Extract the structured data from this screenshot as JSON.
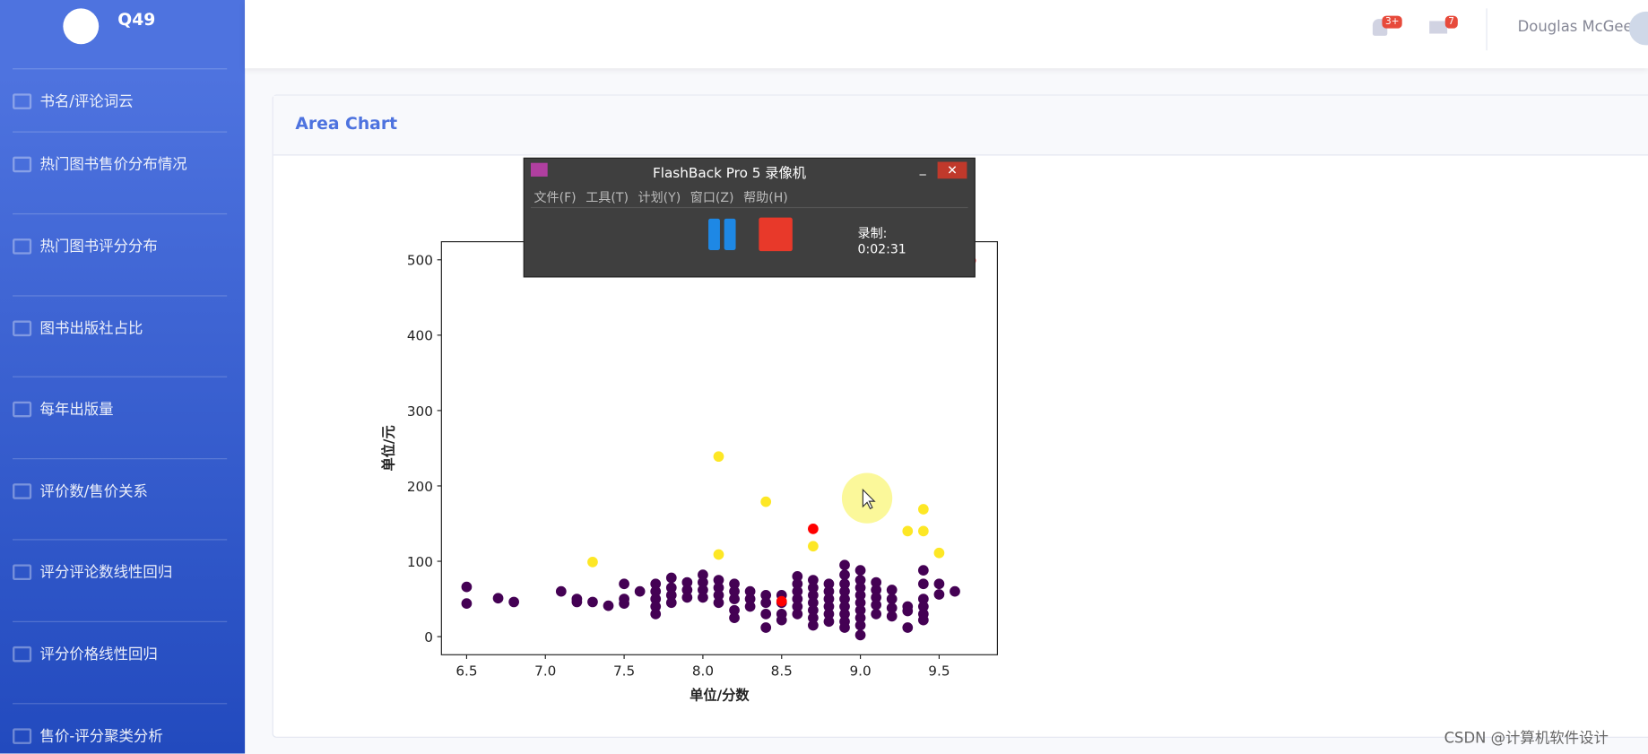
{
  "sidebar": {
    "brand": "Q49",
    "items": [
      "书名/评论词云",
      "热门图书售价分布情况",
      "热门图书评分分布",
      "图书出版社占比",
      "每年出版量",
      "评价数/售价关系",
      "评分评论数线性回归",
      "评分价格线性回归",
      "售价-评分聚类分析"
    ]
  },
  "topbar": {
    "alerts_badge": "3+",
    "messages_badge": "7",
    "user": "Douglas McGee"
  },
  "card": {
    "title": "Area Chart"
  },
  "recorder": {
    "title": "FlashBack Pro 5 录像机",
    "menu": [
      "文件(F)",
      "工具(T)",
      "计划(Y)",
      "窗口(Z)",
      "帮助(H)"
    ],
    "status_label": "录制:",
    "time": "0:02:31"
  },
  "watermark": "CSDN @计算机软件设计",
  "chart_data": {
    "type": "scatter",
    "xlabel": "单位/分数",
    "ylabel": "单位/元",
    "xlim": [
      6.34,
      9.87
    ],
    "ylim": [
      -24,
      524
    ],
    "xticks": [
      6.5,
      {
        "value": 7,
        "label": "7.0"
      },
      7.5,
      {
        "value": 8,
        "label": "8.0"
      },
      8.5,
      {
        "value": 9,
        "label": "9.0"
      },
      9.5
    ],
    "yticks": [
      0,
      100,
      200,
      300,
      400,
      500
    ],
    "series": [
      {
        "color": "#440154",
        "x": [
          6.5,
          6.5,
          6.7,
          6.8,
          7.1,
          7.2,
          7.2,
          7.3,
          7.4,
          7.5,
          7.5,
          7.5,
          7.6,
          7.7,
          7.7,
          7.7,
          7.7,
          7.7,
          7.8,
          7.8,
          7.8,
          7.8,
          7.9,
          7.9,
          7.9,
          8.0,
          8.0,
          8.0,
          8.0,
          8.1,
          8.1,
          8.1,
          8.1,
          8.2,
          8.2,
          8.2,
          8.2,
          8.2,
          8.3,
          8.3,
          8.3,
          8.4,
          8.4,
          8.4,
          8.4,
          8.5,
          8.5,
          8.5,
          8.5,
          8.6,
          8.6,
          8.6,
          8.6,
          8.6,
          8.6,
          8.7,
          8.7,
          8.7,
          8.7,
          8.7,
          8.7,
          8.7,
          8.8,
          8.8,
          8.8,
          8.8,
          8.8,
          8.8,
          8.9,
          8.9,
          8.9,
          8.9,
          8.9,
          8.9,
          8.9,
          8.9,
          8.9,
          9.0,
          9.0,
          9.0,
          9.0,
          9.0,
          9.0,
          9.0,
          9.0,
          9.0,
          9.1,
          9.1,
          9.1,
          9.1,
          9.1,
          9.2,
          9.2,
          9.2,
          9.2,
          9.3,
          9.3,
          9.3,
          9.4,
          9.4,
          9.4,
          9.4,
          9.4,
          9.4,
          9.5,
          9.5,
          9.6
        ],
        "values": [
          66,
          44,
          51,
          46,
          60,
          50,
          46,
          46,
          41,
          70,
          50,
          44,
          60,
          70,
          60,
          50,
          40,
          30,
          78,
          65,
          55,
          45,
          72,
          62,
          52,
          82,
          72,
          62,
          52,
          75,
          65,
          55,
          45,
          70,
          60,
          50,
          35,
          25,
          60,
          50,
          40,
          55,
          45,
          30,
          12,
          55,
          45,
          30,
          22,
          80,
          70,
          60,
          50,
          40,
          30,
          75,
          65,
          55,
          45,
          35,
          25,
          15,
          70,
          60,
          50,
          40,
          30,
          20,
          95,
          82,
          70,
          60,
          50,
          40,
          30,
          20,
          12,
          88,
          75,
          65,
          55,
          45,
          35,
          25,
          15,
          2,
          72,
          62,
          52,
          42,
          30,
          62,
          50,
          38,
          27,
          40,
          34,
          12,
          88,
          70,
          50,
          40,
          30,
          22,
          70,
          56,
          60
        ]
      },
      {
        "color": "#fde725",
        "x": [
          7.3,
          8.1,
          8.1,
          8.4,
          8.7,
          9.3,
          9.4,
          9.4,
          9.5
        ],
        "values": [
          99,
          239,
          109,
          179,
          120,
          140,
          169,
          140,
          111
        ]
      },
      {
        "color": "#ff0000",
        "x": [
          8.5,
          8.7,
          9.7
        ],
        "values": [
          47,
          143,
          499
        ]
      }
    ]
  }
}
